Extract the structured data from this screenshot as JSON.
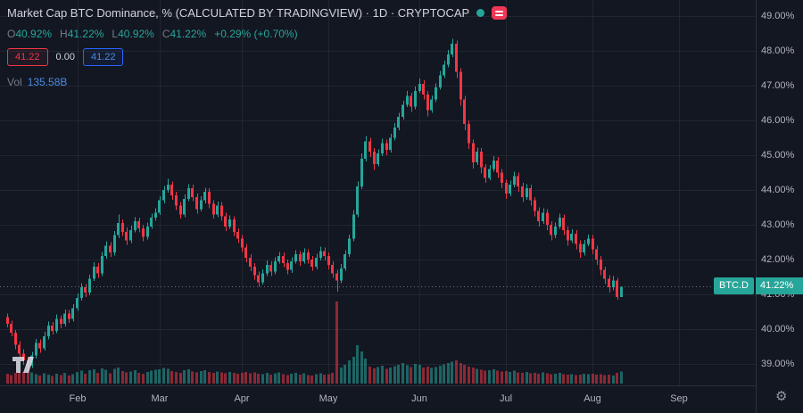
{
  "header": {
    "title": "Market Cap BTC Dominance, % (CALCULATED BY TRADINGVIEW) · 1D · CRYPTOCAP",
    "ohlc": {
      "items": [
        {
          "label": "O",
          "value": "40.92%"
        },
        {
          "label": "H",
          "value": "41.22%"
        },
        {
          "label": "L",
          "value": "40.92%"
        },
        {
          "label": "C",
          "value": "41.22%"
        }
      ],
      "change": "+0.29% (+0.70%)"
    },
    "trade": {
      "sell": "41.22",
      "spread": "0.00",
      "buy": "41.22"
    },
    "volume_label": "Vol",
    "volume_value": "135.58B"
  },
  "price_scale": {
    "ticks": [
      {
        "label": "49.00%",
        "value": 49
      },
      {
        "label": "48.00%",
        "value": 48
      },
      {
        "label": "47.00%",
        "value": 47
      },
      {
        "label": "46.00%",
        "value": 46
      },
      {
        "label": "45.00%",
        "value": 45
      },
      {
        "label": "44.00%",
        "value": 44
      },
      {
        "label": "43.00%",
        "value": 43
      },
      {
        "label": "42.00%",
        "value": 42
      },
      {
        "label": "41.00%",
        "value": 41
      },
      {
        "label": "40.00%",
        "value": 40
      },
      {
        "label": "39.00%",
        "value": 39
      }
    ],
    "badge": {
      "symbol": "BTC.D",
      "price": "41.22%"
    }
  },
  "time_scale": {
    "ticks": [
      {
        "label": "Feb",
        "index": 17
      },
      {
        "label": "Mar",
        "index": 37
      },
      {
        "label": "Apr",
        "index": 57
      },
      {
        "label": "May",
        "index": 78
      },
      {
        "label": "Jun",
        "index": 100
      },
      {
        "label": "Jul",
        "index": 121
      },
      {
        "label": "Aug",
        "index": 142
      },
      {
        "label": "Sep",
        "index": 163
      }
    ]
  },
  "colors": {
    "background": "#131722",
    "grid": "rgba(197,203,215,0.08)",
    "up": "#26a69a",
    "down": "#f23645",
    "vol_up": "rgba(38,166,154,0.55)",
    "vol_down": "rgba(242,54,69,0.55)",
    "price_line": "#9598a1",
    "axis_text": "#b2b5be",
    "muted_text": "#787b86",
    "title_text": "#d1d4dc",
    "buy_blue": "#2962ff",
    "sell_red": "#f23645",
    "badge_green": "#26a69a",
    "volume_value_blue": "#4c8be2",
    "news_icon_pink": "#f23655",
    "status_dot_green": "#26a69a"
  },
  "chart_data": {
    "type": "candlestick",
    "title": "Market Cap BTC Dominance, %",
    "symbol": "BTC.D",
    "interval": "1D",
    "y_unit": "%",
    "ylim": [
      38.4,
      49.5
    ],
    "grid": true,
    "last_price": 41.22,
    "last_volume_display": "135.58B",
    "candles": [
      [
        40.35,
        40.45,
        40.05,
        40.15
      ],
      [
        40.15,
        40.25,
        39.8,
        39.9
      ],
      [
        39.9,
        39.98,
        39.42,
        39.55
      ],
      [
        39.55,
        39.65,
        39.18,
        39.3
      ],
      [
        39.3,
        39.42,
        38.98,
        39.1
      ],
      [
        39.1,
        39.2,
        38.82,
        38.95
      ],
      [
        38.95,
        39.35,
        38.88,
        39.25
      ],
      [
        39.25,
        39.72,
        39.15,
        39.6
      ],
      [
        39.6,
        39.7,
        39.32,
        39.45
      ],
      [
        39.45,
        39.92,
        39.38,
        39.8
      ],
      [
        39.8,
        40.22,
        39.7,
        40.1
      ],
      [
        40.1,
        40.2,
        39.85,
        39.95
      ],
      [
        39.95,
        40.42,
        39.88,
        40.3
      ],
      [
        40.3,
        40.4,
        40.02,
        40.15
      ],
      [
        40.15,
        40.56,
        40.08,
        40.45
      ],
      [
        40.45,
        40.55,
        40.18,
        40.3
      ],
      [
        40.3,
        40.72,
        40.22,
        40.6
      ],
      [
        40.6,
        41.02,
        40.52,
        40.9
      ],
      [
        40.9,
        41.32,
        40.82,
        41.2
      ],
      [
        41.2,
        41.3,
        40.92,
        41.05
      ],
      [
        41.05,
        41.56,
        40.98,
        41.45
      ],
      [
        41.45,
        41.92,
        41.38,
        41.8
      ],
      [
        41.8,
        41.9,
        41.48,
        41.6
      ],
      [
        41.6,
        42.22,
        41.52,
        42.1
      ],
      [
        42.1,
        42.52,
        42.02,
        42.4
      ],
      [
        42.4,
        42.5,
        42.08,
        42.2
      ],
      [
        42.2,
        42.82,
        42.12,
        42.7
      ],
      [
        42.7,
        43.3,
        42.62,
        43.05
      ],
      [
        43.05,
        43.15,
        42.68,
        42.8
      ],
      [
        42.8,
        42.92,
        42.42,
        42.55
      ],
      [
        42.55,
        42.97,
        42.48,
        42.85
      ],
      [
        42.85,
        43.22,
        42.78,
        43.1
      ],
      [
        43.1,
        43.2,
        42.78,
        42.9
      ],
      [
        42.9,
        43.0,
        42.52,
        42.65
      ],
      [
        42.65,
        43.07,
        42.58,
        42.95
      ],
      [
        42.95,
        43.32,
        42.88,
        43.2
      ],
      [
        43.2,
        43.47,
        43.12,
        43.35
      ],
      [
        43.35,
        43.82,
        43.28,
        43.7
      ],
      [
        43.7,
        44.12,
        43.62,
        44.0
      ],
      [
        44.0,
        44.32,
        43.92,
        44.15
      ],
      [
        44.15,
        44.25,
        43.72,
        43.85
      ],
      [
        43.85,
        43.95,
        43.42,
        43.55
      ],
      [
        43.55,
        43.65,
        43.18,
        43.3
      ],
      [
        43.3,
        43.87,
        43.22,
        43.75
      ],
      [
        43.75,
        44.17,
        43.68,
        44.05
      ],
      [
        44.05,
        44.15,
        43.68,
        43.8
      ],
      [
        43.8,
        43.9,
        43.32,
        43.45
      ],
      [
        43.45,
        43.82,
        43.38,
        43.7
      ],
      [
        43.7,
        44.07,
        43.62,
        43.95
      ],
      [
        43.95,
        44.05,
        43.48,
        43.6
      ],
      [
        43.6,
        43.7,
        43.18,
        43.3
      ],
      [
        43.3,
        43.67,
        43.22,
        43.55
      ],
      [
        43.55,
        43.65,
        43.12,
        43.25
      ],
      [
        43.25,
        43.35,
        42.82,
        42.95
      ],
      [
        42.95,
        43.27,
        42.88,
        43.15
      ],
      [
        43.15,
        43.25,
        42.68,
        42.8
      ],
      [
        42.8,
        42.9,
        42.47,
        42.6
      ],
      [
        42.6,
        42.7,
        42.22,
        42.35
      ],
      [
        42.35,
        42.45,
        41.92,
        42.05
      ],
      [
        42.05,
        42.15,
        41.67,
        41.8
      ],
      [
        41.8,
        41.9,
        41.42,
        41.55
      ],
      [
        41.55,
        41.65,
        41.22,
        41.35
      ],
      [
        41.35,
        41.72,
        41.28,
        41.6
      ],
      [
        41.6,
        41.97,
        41.52,
        41.85
      ],
      [
        41.85,
        41.95,
        41.52,
        41.65
      ],
      [
        41.65,
        42.07,
        41.58,
        41.95
      ],
      [
        41.95,
        42.22,
        41.88,
        42.1
      ],
      [
        42.1,
        42.2,
        41.78,
        41.9
      ],
      [
        41.9,
        42.0,
        41.58,
        41.7
      ],
      [
        41.7,
        42.07,
        41.62,
        41.95
      ],
      [
        41.95,
        42.27,
        41.88,
        42.15
      ],
      [
        42.15,
        42.25,
        41.82,
        41.95
      ],
      [
        41.95,
        42.32,
        41.88,
        42.2
      ],
      [
        42.2,
        42.3,
        41.88,
        42.0
      ],
      [
        42.0,
        42.1,
        41.68,
        41.8
      ],
      [
        41.8,
        42.17,
        41.72,
        42.05
      ],
      [
        42.05,
        42.37,
        41.98,
        42.25
      ],
      [
        42.25,
        42.35,
        41.98,
        42.1
      ],
      [
        42.1,
        42.2,
        41.72,
        41.85
      ],
      [
        41.85,
        41.95,
        41.47,
        41.6
      ],
      [
        41.6,
        41.7,
        41.08,
        41.4
      ],
      [
        41.4,
        41.87,
        41.32,
        41.75
      ],
      [
        41.75,
        42.27,
        41.68,
        42.15
      ],
      [
        42.15,
        42.72,
        42.08,
        42.6
      ],
      [
        42.6,
        43.42,
        42.52,
        43.3
      ],
      [
        43.3,
        44.25,
        43.22,
        44.1
      ],
      [
        44.1,
        45.05,
        44.02,
        44.9
      ],
      [
        44.9,
        45.55,
        44.82,
        45.4
      ],
      [
        45.4,
        45.5,
        44.95,
        45.1
      ],
      [
        45.1,
        45.2,
        44.58,
        44.75
      ],
      [
        44.75,
        45.17,
        44.68,
        45.05
      ],
      [
        45.05,
        45.47,
        44.98,
        45.35
      ],
      [
        45.35,
        45.45,
        45.0,
        45.15
      ],
      [
        45.15,
        45.62,
        45.08,
        45.5
      ],
      [
        45.5,
        45.92,
        45.42,
        45.8
      ],
      [
        45.8,
        46.22,
        45.72,
        46.1
      ],
      [
        46.1,
        46.57,
        46.02,
        46.45
      ],
      [
        46.45,
        46.85,
        46.38,
        46.7
      ],
      [
        46.7,
        46.8,
        46.25,
        46.4
      ],
      [
        46.4,
        46.97,
        46.32,
        46.85
      ],
      [
        46.85,
        47.2,
        46.78,
        47.05
      ],
      [
        47.05,
        47.15,
        46.6,
        46.75
      ],
      [
        46.75,
        46.85,
        46.12,
        46.3
      ],
      [
        46.3,
        46.72,
        46.22,
        46.6
      ],
      [
        46.6,
        47.07,
        46.52,
        46.95
      ],
      [
        46.95,
        47.42,
        46.88,
        47.3
      ],
      [
        47.3,
        47.72,
        47.22,
        47.6
      ],
      [
        47.6,
        48.02,
        47.52,
        47.9
      ],
      [
        47.9,
        48.35,
        47.82,
        48.2
      ],
      [
        48.2,
        48.3,
        47.22,
        47.4
      ],
      [
        47.4,
        47.5,
        46.42,
        46.6
      ],
      [
        46.6,
        46.7,
        45.72,
        45.9
      ],
      [
        45.9,
        46.0,
        45.18,
        45.35
      ],
      [
        45.35,
        45.45,
        44.62,
        44.8
      ],
      [
        44.8,
        45.22,
        44.72,
        45.1
      ],
      [
        45.1,
        45.2,
        44.48,
        44.65
      ],
      [
        44.65,
        44.75,
        44.2,
        44.35
      ],
      [
        44.35,
        44.72,
        44.28,
        44.6
      ],
      [
        44.6,
        44.97,
        44.52,
        44.85
      ],
      [
        44.85,
        44.95,
        44.35,
        44.5
      ],
      [
        44.5,
        44.6,
        44.05,
        44.2
      ],
      [
        44.2,
        44.3,
        43.75,
        43.9
      ],
      [
        43.9,
        44.27,
        43.82,
        44.15
      ],
      [
        44.15,
        44.52,
        44.08,
        44.4
      ],
      [
        44.4,
        44.5,
        43.95,
        44.1
      ],
      [
        44.1,
        44.2,
        43.65,
        43.8
      ],
      [
        43.8,
        44.17,
        43.72,
        44.05
      ],
      [
        44.05,
        44.15,
        43.55,
        43.7
      ],
      [
        43.7,
        43.8,
        43.25,
        43.4
      ],
      [
        43.4,
        43.5,
        42.95,
        43.1
      ],
      [
        43.1,
        43.47,
        43.02,
        43.35
      ],
      [
        43.35,
        43.45,
        42.85,
        43.0
      ],
      [
        43.0,
        43.1,
        42.55,
        42.7
      ],
      [
        42.7,
        43.07,
        42.62,
        42.95
      ],
      [
        42.95,
        43.32,
        42.88,
        43.2
      ],
      [
        43.2,
        43.3,
        42.7,
        42.85
      ],
      [
        42.85,
        42.95,
        42.4,
        42.55
      ],
      [
        42.55,
        42.87,
        42.48,
        42.75
      ],
      [
        42.75,
        42.85,
        42.3,
        42.45
      ],
      [
        42.45,
        42.55,
        42.05,
        42.2
      ],
      [
        42.2,
        42.57,
        42.12,
        42.45
      ],
      [
        42.45,
        42.72,
        42.38,
        42.6
      ],
      [
        42.6,
        42.7,
        42.15,
        42.3
      ],
      [
        42.3,
        42.4,
        41.85,
        42.0
      ],
      [
        42.0,
        42.1,
        41.55,
        41.7
      ],
      [
        41.7,
        41.8,
        41.3,
        41.45
      ],
      [
        41.45,
        41.55,
        41.05,
        41.2
      ],
      [
        41.2,
        41.52,
        41.12,
        41.4
      ],
      [
        41.4,
        41.48,
        40.85,
        40.92
      ],
      [
        40.92,
        41.22,
        40.92,
        41.22
      ]
    ],
    "volumes": [
      110,
      95,
      120,
      140,
      130,
      150,
      125,
      105,
      90,
      115,
      100,
      85,
      110,
      95,
      120,
      90,
      105,
      130,
      145,
      110,
      150,
      160,
      120,
      170,
      155,
      115,
      165,
      180,
      140,
      125,
      135,
      150,
      120,
      110,
      130,
      145,
      155,
      160,
      175,
      165,
      140,
      130,
      120,
      150,
      160,
      135,
      125,
      140,
      150,
      130,
      120,
      135,
      125,
      115,
      130,
      120,
      110,
      120,
      130,
      115,
      125,
      110,
      105,
      120,
      100,
      115,
      125,
      105,
      95,
      110,
      120,
      100,
      115,
      95,
      90,
      105,
      115,
      100,
      105,
      120,
      920,
      180,
      210,
      260,
      300,
      430,
      360,
      280,
      190,
      170,
      185,
      200,
      165,
      180,
      195,
      210,
      230,
      205,
      185,
      220,
      210,
      180,
      190,
      175,
      185,
      200,
      215,
      230,
      245,
      260,
      230,
      210,
      190,
      180,
      165,
      155,
      145,
      150,
      160,
      145,
      135,
      140,
      130,
      145,
      125,
      120,
      130,
      115,
      120,
      110,
      125,
      115,
      105,
      110,
      120,
      105,
      100,
      105,
      95,
      100,
      110,
      105,
      110,
      100,
      105,
      95,
      100,
      90,
      120,
      135.58
    ]
  }
}
